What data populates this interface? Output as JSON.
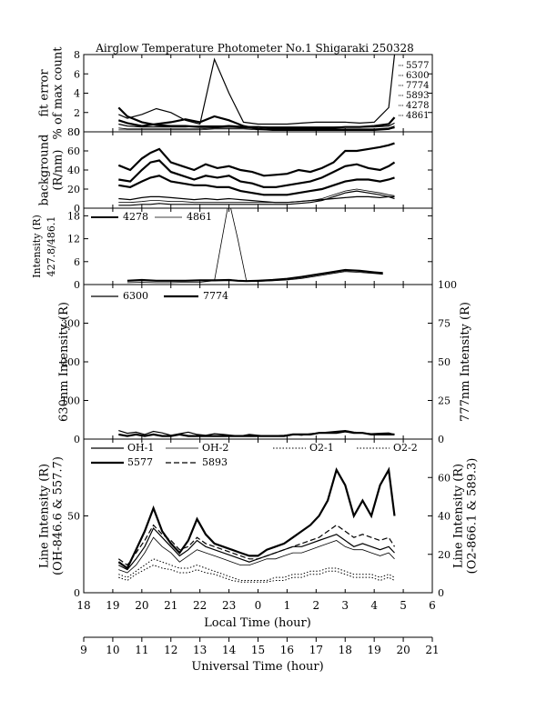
{
  "page": {
    "title": "Airglow Temperature Photometer No.1  Shigaraki  250328"
  },
  "axes": {
    "local_time_label": "Local Time (hour)",
    "universal_time_label": "Universal Time (hour)",
    "local_ticks": [
      "18",
      "19",
      "20",
      "21",
      "22",
      "23",
      "0",
      "1",
      "2",
      "3",
      "4",
      "5",
      "6"
    ],
    "ut_ticks": [
      "9",
      "10",
      "11",
      "12",
      "13",
      "14",
      "15",
      "16",
      "17",
      "18",
      "19",
      "20",
      "21"
    ]
  },
  "chart_data": [
    {
      "type": "line",
      "panel": "fit_error",
      "ylabel_lines": [
        "fit error",
        "% of max count"
      ],
      "ylim": [
        0,
        8
      ],
      "yticks": [
        "0",
        "2",
        "4",
        "6",
        "8"
      ],
      "legend_labels": [
        "5577",
        "6300",
        "7774",
        "5893",
        "4278",
        "4861"
      ],
      "x": [
        19.2,
        19.5,
        20.0,
        20.5,
        21.0,
        21.5,
        22.0,
        22.5,
        23.0,
        23.5,
        0.0,
        0.5,
        1.0,
        1.5,
        2.0,
        2.5,
        3.0,
        3.5,
        4.0,
        4.5,
        4.7
      ],
      "series": [
        {
          "name": "5577",
          "values": [
            2.5,
            1.6,
            1.0,
            0.7,
            0.6,
            0.6,
            0.5,
            0.5,
            0.6,
            0.5,
            0.5,
            0.4,
            0.4,
            0.4,
            0.4,
            0.4,
            0.5,
            0.5,
            0.6,
            0.8,
            1.5
          ]
        },
        {
          "name": "6300",
          "values": [
            1.8,
            1.4,
            1.8,
            2.4,
            2.0,
            1.2,
            0.8,
            7.5,
            4.0,
            1.0,
            0.8,
            0.8,
            0.8,
            0.9,
            1.0,
            1.0,
            1.0,
            0.9,
            1.0,
            2.5,
            8.0
          ]
        },
        {
          "name": "7774",
          "values": [
            0.4,
            0.3,
            0.3,
            0.3,
            0.3,
            0.3,
            0.3,
            0.4,
            0.4,
            0.4,
            0.3,
            0.3,
            0.3,
            0.3,
            0.3,
            0.3,
            0.3,
            0.3,
            0.3,
            0.4,
            0.6
          ]
        },
        {
          "name": "5893",
          "values": [
            0.8,
            0.6,
            0.5,
            0.5,
            0.5,
            0.5,
            0.6,
            0.6,
            0.6,
            0.5,
            0.5,
            0.5,
            0.5,
            0.5,
            0.5,
            0.5,
            0.5,
            0.5,
            0.5,
            0.6,
            0.9
          ]
        },
        {
          "name": "4278",
          "values": [
            1.2,
            0.9,
            0.6,
            0.8,
            1.0,
            1.3,
            1.0,
            1.6,
            1.2,
            0.6,
            0.3,
            0.2,
            0.2,
            0.2,
            0.2,
            0.2,
            0.2,
            0.2,
            0.2,
            0.3,
            0.5
          ]
        },
        {
          "name": "4861",
          "values": [
            0.2,
            0.2,
            0.2,
            0.2,
            0.2,
            0.2,
            0.2,
            0.3,
            0.3,
            0.3,
            0.2,
            0.2,
            0.2,
            0.2,
            0.2,
            0.2,
            0.2,
            0.2,
            0.2,
            0.3,
            0.4
          ]
        }
      ]
    },
    {
      "type": "line",
      "panel": "background",
      "ylabel_lines": [
        "background",
        "(R/nm)"
      ],
      "ylim": [
        0,
        80
      ],
      "yticks": [
        "0",
        "20",
        "40",
        "60",
        "80"
      ],
      "x": [
        19.2,
        19.6,
        20.0,
        20.3,
        20.6,
        21.0,
        21.4,
        21.8,
        22.2,
        22.6,
        23.0,
        23.4,
        23.8,
        0.2,
        0.6,
        1.0,
        1.4,
        1.8,
        2.2,
        2.6,
        3.0,
        3.4,
        3.8,
        4.2,
        4.5,
        4.7
      ],
      "series": [
        {
          "values": [
            45,
            40,
            52,
            58,
            62,
            48,
            44,
            40,
            46,
            42,
            44,
            40,
            38,
            34,
            35,
            36,
            40,
            38,
            42,
            48,
            60,
            60,
            62,
            64,
            66,
            68
          ]
        },
        {
          "values": [
            30,
            28,
            40,
            48,
            50,
            38,
            34,
            30,
            34,
            32,
            34,
            28,
            26,
            22,
            22,
            24,
            26,
            28,
            32,
            38,
            44,
            46,
            42,
            40,
            44,
            48
          ]
        },
        {
          "values": [
            24,
            22,
            28,
            32,
            34,
            28,
            26,
            24,
            24,
            22,
            22,
            18,
            16,
            14,
            14,
            14,
            16,
            18,
            20,
            24,
            28,
            30,
            30,
            28,
            30,
            32
          ]
        },
        {
          "values": [
            10,
            9,
            11,
            12,
            12,
            11,
            10,
            9,
            10,
            9,
            10,
            9,
            8,
            7,
            6,
            6,
            7,
            8,
            9,
            10,
            11,
            12,
            12,
            11,
            12,
            12
          ]
        },
        {
          "values": [
            6,
            6,
            7,
            8,
            8,
            7,
            7,
            6,
            6,
            6,
            6,
            6,
            6,
            6,
            6,
            6,
            7,
            8,
            10,
            14,
            18,
            20,
            18,
            16,
            14,
            13
          ]
        },
        {
          "values": [
            3,
            3,
            4,
            4,
            5,
            4,
            4,
            4,
            4,
            4,
            4,
            4,
            4,
            4,
            4,
            4,
            5,
            6,
            8,
            12,
            16,
            18,
            16,
            14,
            12,
            10
          ]
        }
      ]
    },
    {
      "type": "line",
      "panel": "intensity_4278_4861",
      "ylabel_lines": [
        "Intensity (R)",
        "427.8/486.1"
      ],
      "ylim": [
        0,
        20
      ],
      "yticks": [
        "0",
        "6",
        "12",
        "18"
      ],
      "legend_labels": [
        "4278",
        "4861"
      ],
      "x": [
        19.5,
        20.0,
        20.5,
        21.0,
        21.5,
        22.0,
        22.5,
        23.0,
        23.3,
        23.6,
        0.0,
        0.5,
        1.0,
        1.5,
        2.0,
        2.5,
        3.0,
        3.5,
        4.0,
        4.3
      ],
      "series": [
        {
          "name": "4278",
          "values": [
            1.0,
            1.2,
            1.0,
            1.0,
            1.0,
            1.1,
            1.1,
            1.2,
            1.0,
            0.9,
            1.0,
            1.2,
            1.5,
            2.0,
            2.6,
            3.2,
            3.8,
            3.6,
            3.2,
            3.0
          ]
        },
        {
          "name": "4861",
          "values": [
            0.5,
            0.6,
            0.5,
            0.5,
            0.6,
            0.6,
            1.0,
            22.0,
            12.0,
            1.0,
            0.8,
            1.0,
            1.2,
            1.6,
            2.2,
            2.8,
            3.4,
            3.2,
            2.9,
            2.7
          ]
        }
      ]
    },
    {
      "type": "line",
      "panel": "630_777",
      "ylabel_left": "630nm Intensity (R)",
      "ylabel_right": "777nm Intensity (R)",
      "ylim_left": [
        0,
        400
      ],
      "ylim_right": [
        0,
        100
      ],
      "yticks_left": [
        "0",
        "100",
        "200",
        "300"
      ],
      "yticks_right": [
        "0",
        "25",
        "50",
        "75",
        "100"
      ],
      "legend_labels": [
        "6300",
        "7774"
      ],
      "x": [
        19.2,
        19.5,
        19.8,
        20.1,
        20.4,
        20.7,
        21.0,
        21.3,
        21.6,
        21.9,
        22.2,
        22.5,
        22.8,
        23.1,
        23.4,
        23.7,
        0.0,
        0.3,
        0.6,
        0.9,
        1.2,
        1.5,
        1.8,
        2.1,
        2.4,
        2.7,
        3.0,
        3.3,
        3.6,
        3.9,
        4.2,
        4.5,
        4.7
      ],
      "series": [
        {
          "name": "6300",
          "values": [
            22,
            15,
            18,
            12,
            20,
            16,
            10,
            14,
            18,
            12,
            10,
            14,
            12,
            10,
            8,
            12,
            10,
            8,
            9,
            10,
            12,
            10,
            14,
            16,
            18,
            20,
            22,
            18,
            16,
            14,
            15,
            16,
            12
          ]
        },
        {
          "name": "7774",
          "values": [
            3,
            2,
            3,
            2,
            3,
            2,
            2,
            3,
            2,
            2,
            2,
            2,
            2,
            2,
            2,
            2,
            2,
            2,
            2,
            2,
            3,
            3,
            3,
            4,
            4,
            4,
            5,
            4,
            4,
            3,
            3,
            3,
            3
          ]
        }
      ]
    },
    {
      "type": "line",
      "panel": "line_intensity",
      "ylabel_left_lines": [
        "Line Intensity (R)",
        "(OH-846.6 & 557.7)"
      ],
      "ylabel_right_lines": [
        "Line Intensity (R)",
        "(O2-866.1 & 589.3)"
      ],
      "ylim_left": [
        0,
        100
      ],
      "ylim_right": [
        0,
        80
      ],
      "yticks_left": [
        "0",
        "50"
      ],
      "yticks_right": [
        "0",
        "20",
        "40",
        "60"
      ],
      "legend_labels": [
        "OH-1",
        "OH-2",
        "O2-1",
        "O2-2",
        "5577",
        "5893"
      ],
      "x": [
        19.2,
        19.5,
        19.8,
        20.1,
        20.4,
        20.7,
        21.0,
        21.3,
        21.6,
        21.9,
        22.2,
        22.5,
        22.8,
        23.1,
        23.4,
        23.7,
        0.0,
        0.3,
        0.6,
        0.9,
        1.2,
        1.5,
        1.8,
        2.1,
        2.4,
        2.7,
        3.0,
        3.3,
        3.6,
        3.9,
        4.2,
        4.5,
        4.7
      ],
      "series": [
        {
          "name": "OH-1",
          "values": [
            18,
            15,
            22,
            30,
            42,
            36,
            30,
            24,
            28,
            34,
            30,
            28,
            26,
            24,
            22,
            20,
            22,
            24,
            26,
            28,
            30,
            30,
            32,
            34,
            36,
            38,
            34,
            30,
            32,
            30,
            28,
            30,
            26
          ]
        },
        {
          "name": "OH-2",
          "values": [
            15,
            13,
            18,
            26,
            36,
            30,
            26,
            20,
            24,
            28,
            26,
            24,
            22,
            20,
            18,
            18,
            20,
            22,
            22,
            24,
            26,
            26,
            28,
            30,
            32,
            34,
            30,
            28,
            28,
            26,
            24,
            26,
            22
          ]
        },
        {
          "name": "O2-1",
          "values": [
            12,
            10,
            14,
            18,
            22,
            20,
            18,
            16,
            16,
            18,
            16,
            14,
            12,
            10,
            8,
            8,
            8,
            8,
            10,
            10,
            12,
            12,
            14,
            14,
            16,
            16,
            14,
            12,
            12,
            12,
            10,
            12,
            10
          ]
        },
        {
          "name": "O2-2",
          "values": [
            10,
            8,
            12,
            15,
            18,
            16,
            15,
            13,
            13,
            15,
            13,
            12,
            10,
            8,
            7,
            7,
            7,
            7,
            8,
            8,
            10,
            10,
            12,
            12,
            14,
            14,
            12,
            10,
            10,
            10,
            8,
            10,
            8
          ]
        },
        {
          "name": "5577",
          "values": [
            20,
            16,
            28,
            40,
            55,
            40,
            32,
            26,
            34,
            48,
            38,
            32,
            30,
            28,
            26,
            24,
            24,
            28,
            30,
            32,
            36,
            40,
            44,
            50,
            60,
            80,
            70,
            50,
            60,
            50,
            70,
            80,
            50
          ]
        },
        {
          "name": "5893",
          "values": [
            22,
            18,
            26,
            34,
            44,
            38,
            34,
            28,
            30,
            36,
            32,
            30,
            28,
            26,
            24,
            22,
            22,
            24,
            26,
            28,
            30,
            32,
            34,
            36,
            40,
            44,
            40,
            36,
            38,
            36,
            34,
            36,
            30
          ]
        }
      ]
    }
  ]
}
